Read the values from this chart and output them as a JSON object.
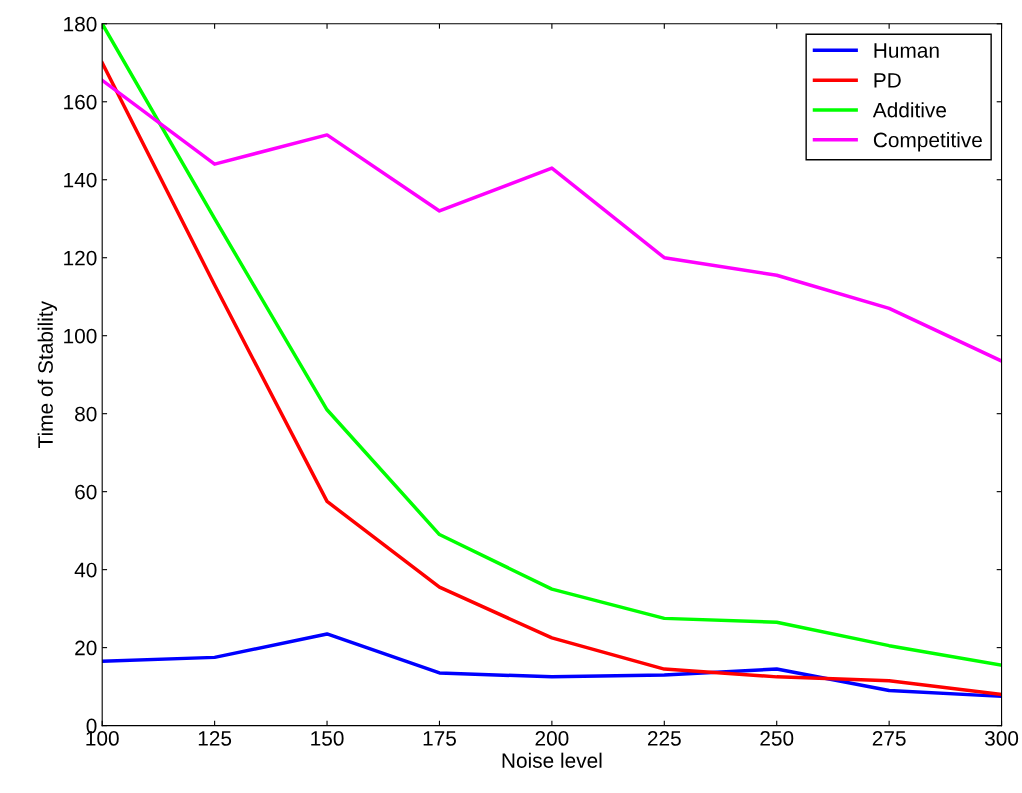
{
  "chart_data": {
    "type": "line",
    "xlabel": "Noise level",
    "ylabel": "Time of Stability",
    "x": [
      100,
      125,
      150,
      175,
      200,
      225,
      250,
      275,
      300
    ],
    "series": [
      {
        "name": "Human",
        "color": "#0000ff",
        "values": [
          16.5,
          17.5,
          23.5,
          13.5,
          12.5,
          13,
          14.5,
          9,
          7.5
        ]
      },
      {
        "name": "PD",
        "color": "#ff0000",
        "values": [
          170,
          113,
          57.5,
          35.5,
          22.5,
          14.5,
          12.5,
          11.5,
          8
        ]
      },
      {
        "name": "Additive",
        "color": "#00ff00",
        "values": [
          180,
          130,
          81,
          49,
          35,
          27.5,
          26.5,
          20.5,
          15.5
        ]
      },
      {
        "name": "Competitive",
        "color": "#ff00ff",
        "values": [
          165.5,
          144,
          151.5,
          132,
          143,
          120,
          115.5,
          107,
          93.5
        ]
      }
    ],
    "xlim": [
      100,
      300
    ],
    "xticks": [
      100,
      125,
      150,
      175,
      200,
      225,
      250,
      275,
      300
    ],
    "ylim": [
      0,
      180
    ],
    "yticks": [
      0,
      20,
      40,
      60,
      80,
      100,
      120,
      140,
      160,
      180
    ],
    "grid": false,
    "legend": "top right",
    "marker": "none",
    "line_style": "solid"
  }
}
